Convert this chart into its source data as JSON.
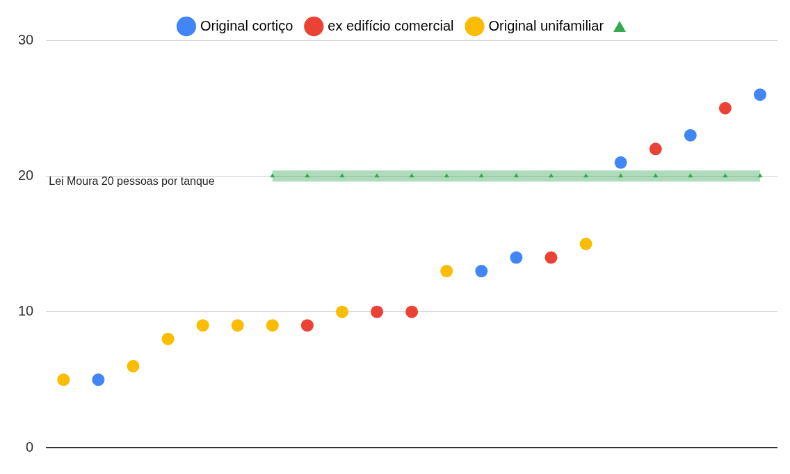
{
  "chart_data": {
    "type": "scatter",
    "categories": [
      null,
      null,
      null,
      null,
      null,
      null,
      null,
      null,
      null,
      null,
      null,
      null,
      null,
      null,
      null,
      null,
      null,
      null,
      null,
      null,
      null
    ],
    "series": [
      {
        "name": "Original cortiço",
        "color": "#4285f4",
        "values": [
          null,
          5,
          null,
          null,
          null,
          null,
          null,
          null,
          null,
          null,
          null,
          null,
          13,
          14,
          null,
          null,
          21,
          null,
          23,
          null,
          26
        ]
      },
      {
        "name": "ex edifício comercial",
        "color": "#ea4335",
        "values": [
          null,
          null,
          null,
          null,
          null,
          null,
          null,
          9,
          null,
          10,
          10,
          null,
          null,
          null,
          14,
          null,
          null,
          22,
          null,
          25,
          null
        ]
      },
      {
        "name": "Original unifamiliar",
        "color": "#fbbc04",
        "values": [
          5,
          null,
          6,
          8,
          9,
          9,
          9,
          null,
          10,
          null,
          null,
          13,
          null,
          null,
          null,
          15,
          null,
          null,
          null,
          null,
          null
        ]
      },
      {
        "type": "line",
        "color": "#34a853",
        "marker": "triangle",
        "line_style": "solid",
        "values": [
          null,
          null,
          null,
          null,
          null,
          null,
          20,
          20,
          20,
          20,
          20,
          20,
          20,
          20,
          20,
          20,
          20,
          20,
          20,
          20,
          20
        ]
      }
    ],
    "annotations": [
      "Lei Moura 20 pessoas por tanque"
    ],
    "ylim": [
      0,
      30
    ],
    "yticks": [
      0,
      10,
      20,
      30
    ],
    "grid": "y",
    "legend": "top",
    "marker": "circle"
  }
}
